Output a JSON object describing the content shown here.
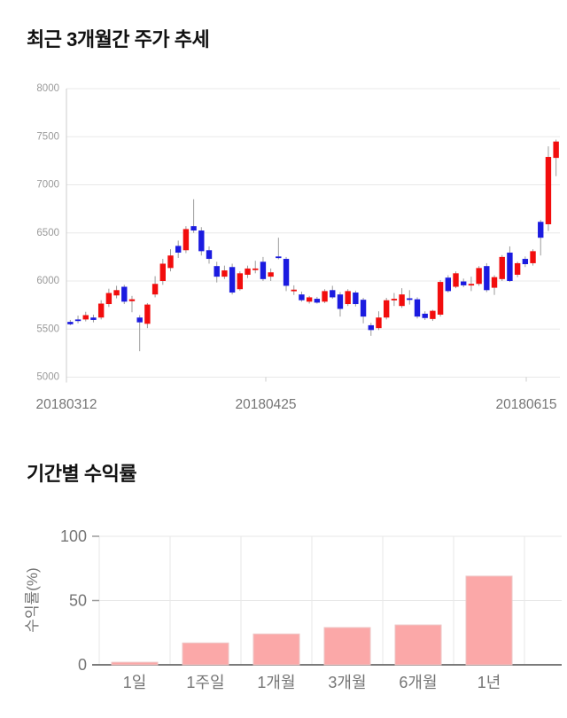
{
  "chart_data": [
    {
      "type": "candlestick",
      "title": "최근 3개월간 주가 추세",
      "ylim": [
        5000,
        8000
      ],
      "y_ticks": [
        8000,
        7500,
        7000,
        6500,
        6000,
        5500,
        5000
      ],
      "x_tick_labels": [
        "20180312",
        "20180425",
        "20180615"
      ],
      "grid": true,
      "up_color": "#f20d0d",
      "down_color": "#1b1be0",
      "wick_color": "#9b9b9b",
      "candles_format": [
        "open",
        "high",
        "low",
        "close"
      ],
      "candles": [
        [
          5575,
          5595,
          5540,
          5550
        ],
        [
          5600,
          5640,
          5560,
          5590
        ],
        [
          5600,
          5680,
          5580,
          5645
        ],
        [
          5620,
          5650,
          5570,
          5595
        ],
        [
          5620,
          5800,
          5600,
          5765
        ],
        [
          5760,
          5920,
          5730,
          5875
        ],
        [
          5850,
          5950,
          5820,
          5905
        ],
        [
          5940,
          5960,
          5760,
          5785
        ],
        [
          5790,
          5845,
          5675,
          5810
        ],
        [
          5620,
          5645,
          5270,
          5570
        ],
        [
          5555,
          5770,
          5510,
          5755
        ],
        [
          5860,
          6050,
          5830,
          5970
        ],
        [
          6000,
          6230,
          5960,
          6180
        ],
        [
          6135,
          6330,
          6100,
          6265
        ],
        [
          6365,
          6420,
          6240,
          6295
        ],
        [
          6320,
          6570,
          6290,
          6540
        ],
        [
          6570,
          6850,
          6500,
          6525
        ],
        [
          6525,
          6560,
          6265,
          6310
        ],
        [
          6320,
          6360,
          6180,
          6230
        ],
        [
          6155,
          6200,
          5985,
          6045
        ],
        [
          6045,
          6160,
          6020,
          6110
        ],
        [
          6145,
          6180,
          5860,
          5880
        ],
        [
          5915,
          6100,
          5900,
          6080
        ],
        [
          6065,
          6160,
          6030,
          6130
        ],
        [
          6125,
          6210,
          6080,
          6130
        ],
        [
          6200,
          6250,
          6000,
          6020
        ],
        [
          6045,
          6130,
          6000,
          6090
        ],
        [
          6255,
          6450,
          6225,
          6240
        ],
        [
          6230,
          6250,
          5895,
          5950
        ],
        [
          5905,
          5955,
          5855,
          5910
        ],
        [
          5860,
          5890,
          5785,
          5800
        ],
        [
          5785,
          5845,
          5765,
          5830
        ],
        [
          5815,
          5835,
          5765,
          5775
        ],
        [
          5785,
          5915,
          5770,
          5895
        ],
        [
          5905,
          5950,
          5815,
          5830
        ],
        [
          5860,
          5885,
          5630,
          5710
        ],
        [
          5760,
          5915,
          5740,
          5895
        ],
        [
          5880,
          5900,
          5735,
          5760
        ],
        [
          5805,
          5825,
          5560,
          5630
        ],
        [
          5540,
          5565,
          5430,
          5490
        ],
        [
          5510,
          5685,
          5490,
          5620
        ],
        [
          5620,
          5825,
          5600,
          5800
        ],
        [
          5815,
          5875,
          5740,
          5815
        ],
        [
          5740,
          5925,
          5720,
          5860
        ],
        [
          5820,
          5905,
          5755,
          5810
        ],
        [
          5810,
          5830,
          5610,
          5630
        ],
        [
          5660,
          5685,
          5595,
          5615
        ],
        [
          5605,
          5700,
          5585,
          5690
        ],
        [
          5650,
          6010,
          5630,
          5990
        ],
        [
          6035,
          6060,
          5880,
          5895
        ],
        [
          5940,
          6100,
          5925,
          6080
        ],
        [
          5995,
          6025,
          5935,
          5955
        ],
        [
          5970,
          6045,
          5895,
          5970
        ],
        [
          5970,
          6155,
          5950,
          6135
        ],
        [
          6155,
          6185,
          5885,
          5905
        ],
        [
          5930,
          6060,
          5855,
          6040
        ],
        [
          6020,
          6270,
          6000,
          6250
        ],
        [
          6295,
          6360,
          5990,
          6000
        ],
        [
          6065,
          6200,
          6040,
          6185
        ],
        [
          6230,
          6255,
          6145,
          6175
        ],
        [
          6185,
          6330,
          6160,
          6310
        ],
        [
          6615,
          6635,
          6265,
          6450
        ],
        [
          6590,
          7400,
          6520,
          7290
        ],
        [
          7280,
          7470,
          7090,
          7450
        ]
      ]
    },
    {
      "type": "bar",
      "title": "기간별 수익률",
      "ylabel": "수익률(%)",
      "xlabel": "",
      "categories": [
        "1일",
        "1주일",
        "1개월",
        "3개월",
        "6개월",
        "1년"
      ],
      "values": [
        2,
        17,
        24,
        29,
        31,
        69
      ],
      "ylim": [
        0,
        100
      ],
      "y_ticks": [
        0,
        50,
        100
      ],
      "grid": true,
      "legend": "none",
      "bar_color": "#fba8a8",
      "bar_border_color": "#eec6c6",
      "axis_text_color": "#757575"
    }
  ]
}
